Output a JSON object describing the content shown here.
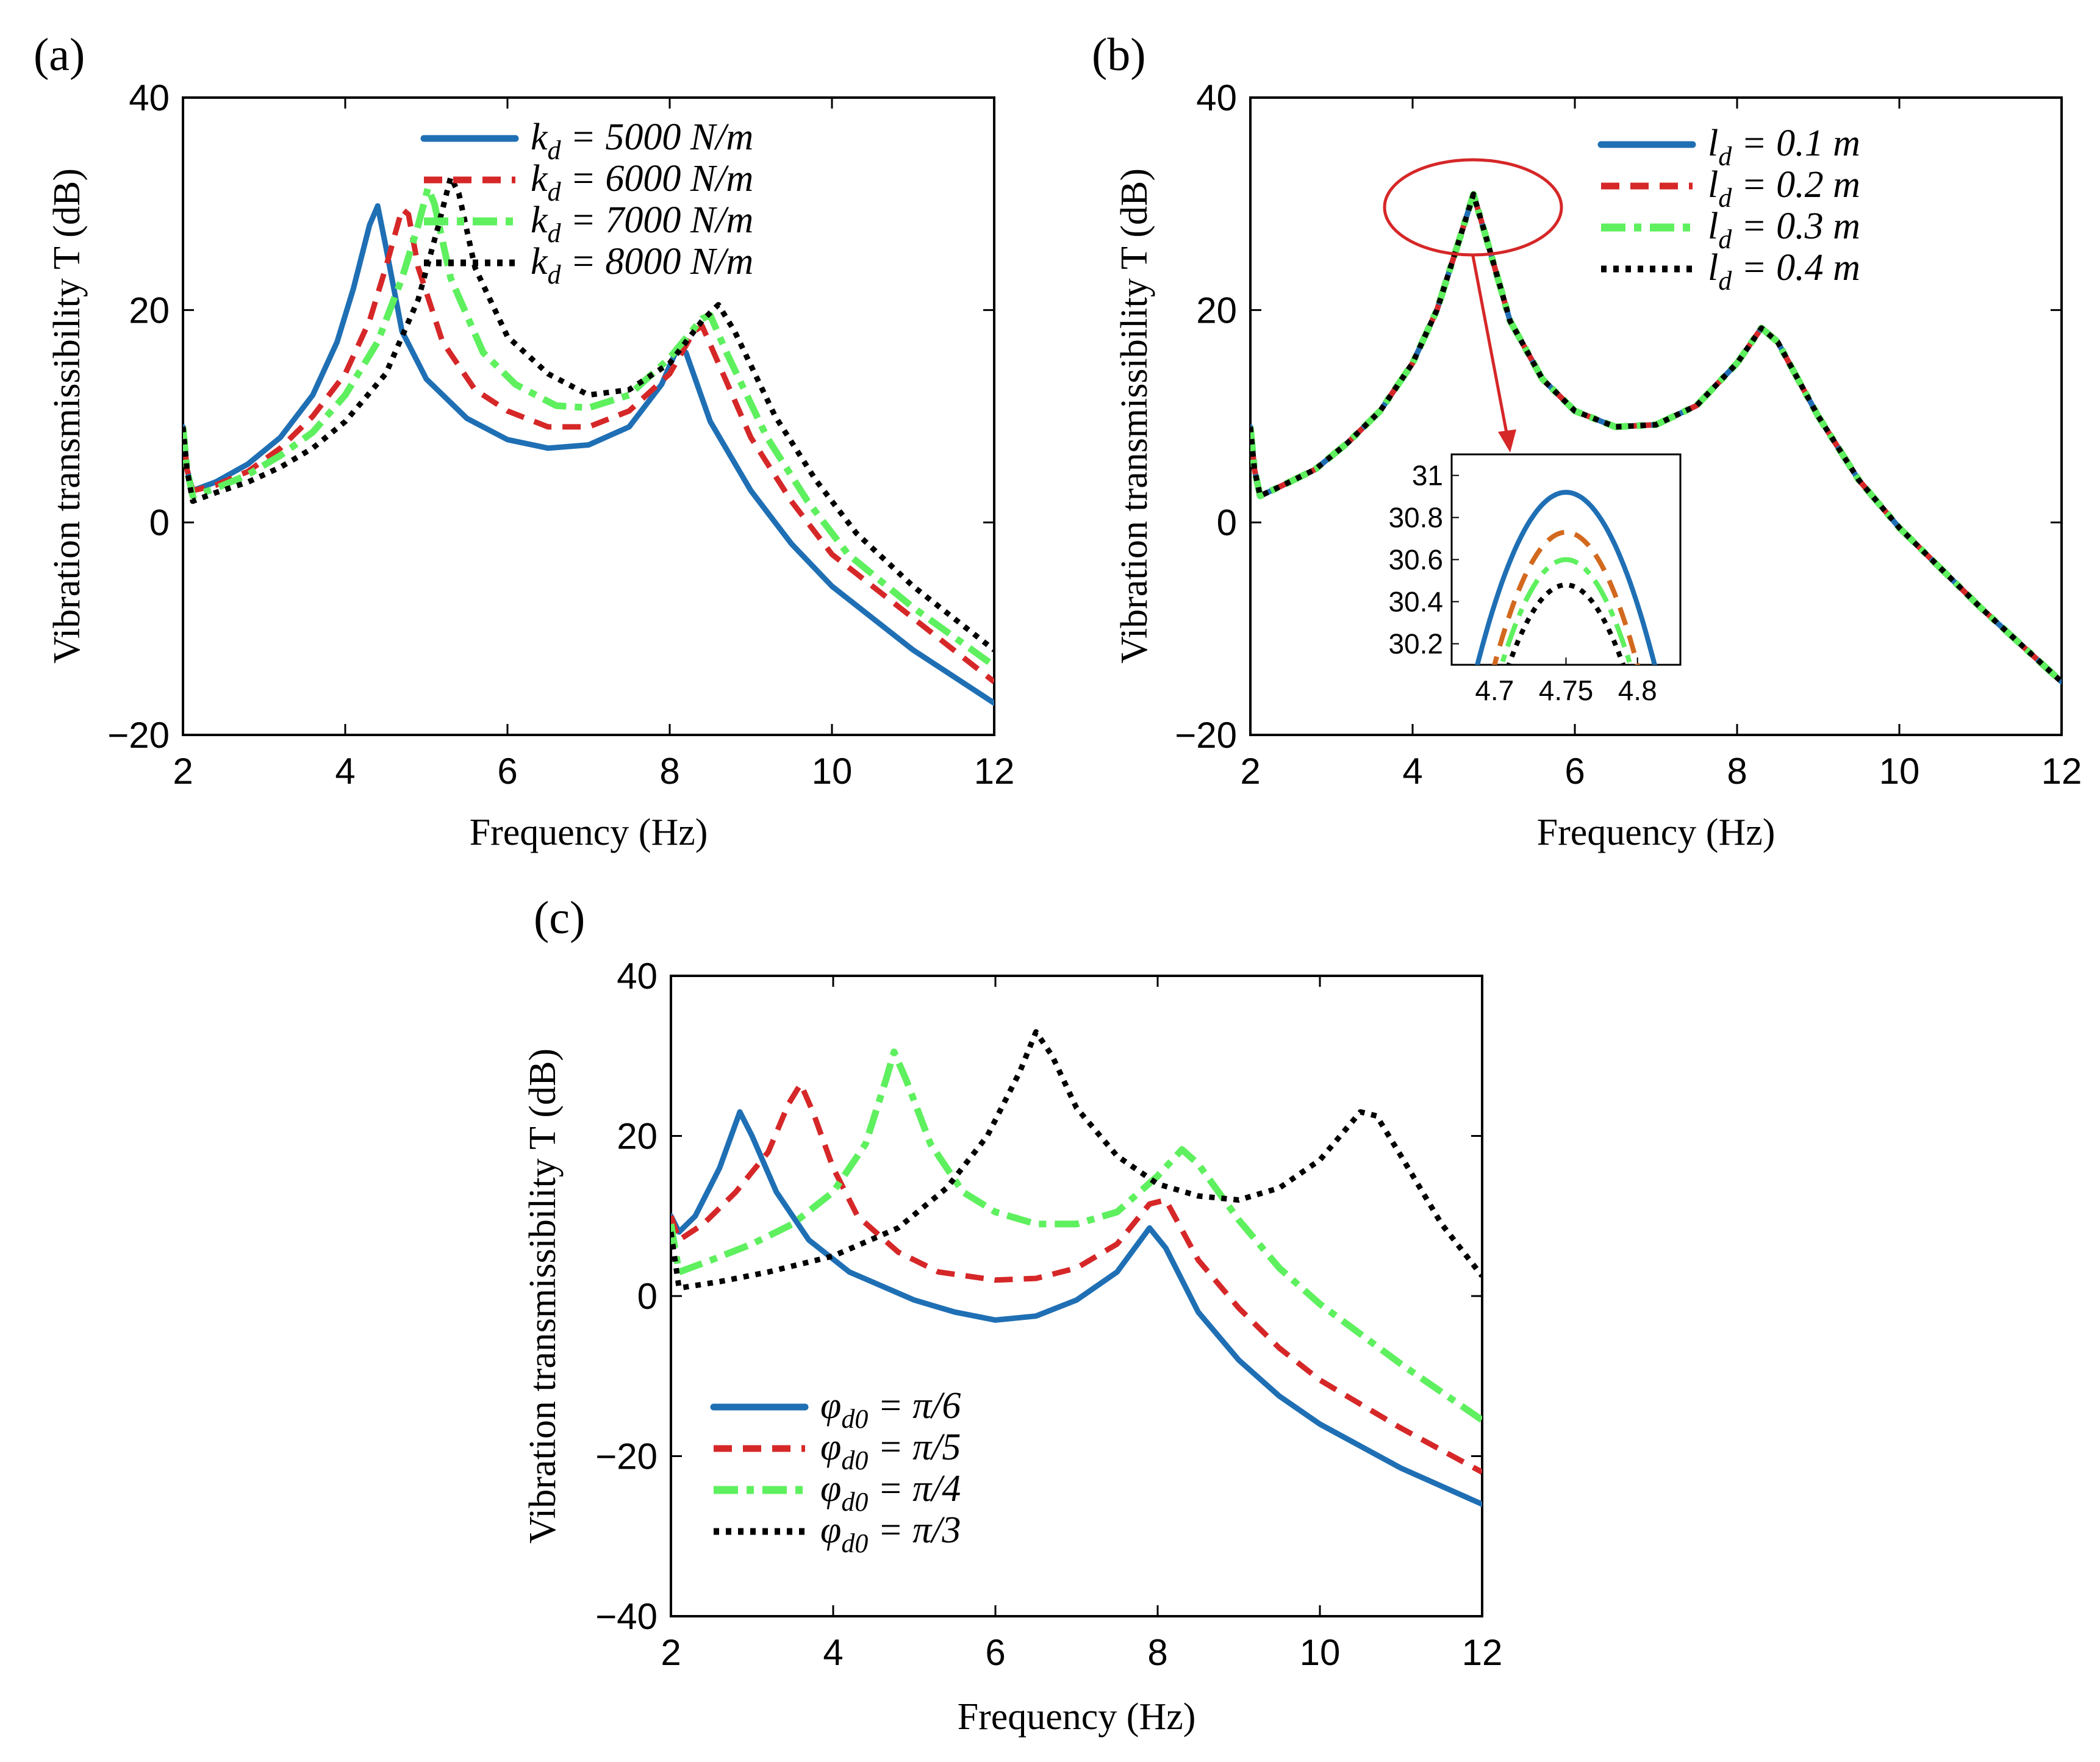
{
  "colors": {
    "blue": "#1f6fb4",
    "red": "#d62728",
    "green": "#5ef05e",
    "black": "#000000",
    "orange": "#d2691e",
    "annotation": "#d62728"
  },
  "chart_data": [
    {
      "panel": "(a)",
      "type": "line",
      "xlabel": "Frequency (Hz)",
      "ylabel": "Vibration transmissibility T (dB)",
      "xlim": [
        2,
        12
      ],
      "ylim": [
        -20,
        40
      ],
      "xticks": [
        "2",
        "4",
        "6",
        "8",
        "10",
        "12"
      ],
      "yticks": [
        "40",
        "20",
        "0",
        "−20"
      ],
      "legend_position": "top-right",
      "series": [
        {
          "name": "k_d = 5000 N/m",
          "label": "k",
          "sub": "d",
          "rest": " = 5000 N/m",
          "style": "solid",
          "color": "blue",
          "points": [
            [
              2,
              9
            ],
            [
              2.05,
              5
            ],
            [
              2.12,
              3
            ],
            [
              2.4,
              3.8
            ],
            [
              2.8,
              5.5
            ],
            [
              3.2,
              8
            ],
            [
              3.6,
              12
            ],
            [
              3.9,
              17
            ],
            [
              4.1,
              22
            ],
            [
              4.3,
              28
            ],
            [
              4.4,
              29.8
            ],
            [
              4.5,
              26
            ],
            [
              4.7,
              18
            ],
            [
              5,
              13.5
            ],
            [
              5.5,
              9.8
            ],
            [
              6,
              7.8
            ],
            [
              6.5,
              7
            ],
            [
              7,
              7.3
            ],
            [
              7.5,
              9
            ],
            [
              7.9,
              13
            ],
            [
              8.1,
              16.5
            ],
            [
              8.2,
              16
            ],
            [
              8.5,
              9.5
            ],
            [
              9,
              3
            ],
            [
              9.5,
              -2
            ],
            [
              10,
              -6
            ],
            [
              11,
              -12
            ],
            [
              12,
              -17
            ]
          ]
        },
        {
          "name": "k_d = 6000 N/m",
          "label": "k",
          "sub": "d",
          "rest": " = 6000 N/m",
          "style": "dashed",
          "color": "red",
          "points": [
            [
              2,
              9
            ],
            [
              2.05,
              5
            ],
            [
              2.12,
              3
            ],
            [
              2.4,
              3.5
            ],
            [
              2.8,
              4.8
            ],
            [
              3.2,
              7
            ],
            [
              3.6,
              10
            ],
            [
              4,
              14
            ],
            [
              4.3,
              19
            ],
            [
              4.5,
              24
            ],
            [
              4.7,
              29.5
            ],
            [
              4.78,
              29
            ],
            [
              4.9,
              24
            ],
            [
              5.2,
              17
            ],
            [
              5.6,
              12.5
            ],
            [
              6,
              10.5
            ],
            [
              6.5,
              9
            ],
            [
              7,
              9
            ],
            [
              7.5,
              10.5
            ],
            [
              8,
              14
            ],
            [
              8.3,
              18
            ],
            [
              8.4,
              18.5
            ],
            [
              8.6,
              15
            ],
            [
              9,
              8
            ],
            [
              9.5,
              2
            ],
            [
              10,
              -3
            ],
            [
              11,
              -9
            ],
            [
              12,
              -15
            ]
          ]
        },
        {
          "name": "k_d = 7000 N/m",
          "label": "k",
          "sub": "d",
          "rest": " = 7000 N/m",
          "style": "dashdot",
          "color": "green",
          "points": [
            [
              2,
              9
            ],
            [
              2.05,
              5
            ],
            [
              2.12,
              2.5
            ],
            [
              2.4,
              3.2
            ],
            [
              2.8,
              4.5
            ],
            [
              3.2,
              6.3
            ],
            [
              3.6,
              8.5
            ],
            [
              4,
              12
            ],
            [
              4.4,
              17
            ],
            [
              4.7,
              23
            ],
            [
              4.9,
              28
            ],
            [
              5.02,
              31.5
            ],
            [
              5.1,
              30
            ],
            [
              5.3,
              23
            ],
            [
              5.7,
              16
            ],
            [
              6.1,
              13
            ],
            [
              6.6,
              11
            ],
            [
              7,
              10.8
            ],
            [
              7.5,
              12
            ],
            [
              8,
              15.5
            ],
            [
              8.4,
              19.2
            ],
            [
              8.5,
              19.5
            ],
            [
              8.7,
              16
            ],
            [
              9.2,
              8
            ],
            [
              9.7,
              2
            ],
            [
              10.2,
              -3
            ],
            [
              11,
              -8
            ],
            [
              12,
              -13.5
            ]
          ]
        },
        {
          "name": "k_d = 8000 N/m",
          "label": "k",
          "sub": "d",
          "rest": " = 8000 N/m",
          "style": "dotted",
          "color": "black",
          "points": [
            [
              2,
              9
            ],
            [
              2.05,
              5
            ],
            [
              2.12,
              2
            ],
            [
              2.4,
              2.8
            ],
            [
              2.8,
              3.8
            ],
            [
              3.2,
              5.2
            ],
            [
              3.6,
              7
            ],
            [
              4,
              9.5
            ],
            [
              4.5,
              14
            ],
            [
              4.9,
              21
            ],
            [
              5.15,
              28
            ],
            [
              5.3,
              32.5
            ],
            [
              5.4,
              31
            ],
            [
              5.6,
              24
            ],
            [
              6,
              17.5
            ],
            [
              6.5,
              14
            ],
            [
              7,
              12
            ],
            [
              7.5,
              12.5
            ],
            [
              8,
              15
            ],
            [
              8.4,
              19
            ],
            [
              8.6,
              20.5
            ],
            [
              8.8,
              18
            ],
            [
              9.3,
              10
            ],
            [
              9.8,
              4
            ],
            [
              10.3,
              -1
            ],
            [
              11,
              -6
            ],
            [
              12,
              -12
            ]
          ]
        }
      ]
    },
    {
      "panel": "(b)",
      "type": "line",
      "xlabel": "Frequency (Hz)",
      "ylabel": "Vibration transmissibility T (dB)",
      "xlim": [
        2,
        12
      ],
      "ylim": [
        -20,
        40
      ],
      "xticks": [
        "2",
        "4",
        "6",
        "8",
        "10",
        "12"
      ],
      "yticks": [
        "40",
        "20",
        "0",
        "−20"
      ],
      "legend_position": "top-right",
      "series": [
        {
          "name": "l_d = 0.1 m",
          "label": "l",
          "sub": "d",
          "rest": " = 0.1 m",
          "style": "solid",
          "color": "blue"
        },
        {
          "name": "l_d = 0.2 m",
          "label": "l",
          "sub": "d",
          "rest": " = 0.2 m",
          "style": "dashed",
          "color": "red"
        },
        {
          "name": "l_d = 0.3 m",
          "label": "l",
          "sub": "d",
          "rest": " = 0.3 m",
          "style": "dashdot",
          "color": "green"
        },
        {
          "name": "l_d = 0.4 m",
          "label": "l",
          "sub": "d",
          "rest": " = 0.4 m",
          "style": "dotted",
          "color": "black"
        }
      ],
      "shared_points": [
        [
          2,
          9
        ],
        [
          2.05,
          5
        ],
        [
          2.12,
          2.5
        ],
        [
          2.4,
          3.5
        ],
        [
          2.8,
          5
        ],
        [
          3.2,
          7.5
        ],
        [
          3.6,
          10.5
        ],
        [
          4,
          15
        ],
        [
          4.3,
          20
        ],
        [
          4.55,
          26
        ],
        [
          4.75,
          30.9
        ],
        [
          4.9,
          27
        ],
        [
          5.2,
          19
        ],
        [
          5.6,
          13.5
        ],
        [
          6,
          10.5
        ],
        [
          6.5,
          9
        ],
        [
          7,
          9.2
        ],
        [
          7.5,
          11
        ],
        [
          8,
          15
        ],
        [
          8.3,
          18.3
        ],
        [
          8.5,
          17
        ],
        [
          9,
          10
        ],
        [
          9.5,
          4
        ],
        [
          10,
          -0.5
        ],
        [
          11,
          -8
        ],
        [
          12,
          -15
        ]
      ],
      "inset": {
        "xlim": [
          4.67,
          4.83
        ],
        "ylim": [
          30.1,
          31.1
        ],
        "xticks": [
          "4.7",
          "4.75",
          "4.8"
        ],
        "yticks": [
          "31",
          "30.8",
          "30.6",
          "30.4",
          "30.2"
        ],
        "peaks": [
          {
            "color": "blue",
            "peak": 30.92,
            "halfwidth": 0.062
          },
          {
            "color": "orange",
            "peak": 30.73,
            "halfwidth": 0.05
          },
          {
            "color": "green",
            "peak": 30.6,
            "halfwidth": 0.045
          },
          {
            "color": "black",
            "peak": 30.48,
            "halfwidth": 0.04
          }
        ]
      }
    },
    {
      "panel": "(c)",
      "type": "line",
      "xlabel": "Frequency (Hz)",
      "ylabel": "Vibration transmissibility T (dB)",
      "xlim": [
        2,
        12
      ],
      "ylim": [
        -40,
        40
      ],
      "xticks": [
        "2",
        "4",
        "6",
        "8",
        "10",
        "12"
      ],
      "yticks": [
        "40",
        "20",
        "0",
        "−20",
        "−40"
      ],
      "legend_position": "bottom-left",
      "series": [
        {
          "name": "φ_d0 = π/6",
          "label": "φ",
          "sub": "d0",
          "rest": " = π/6",
          "style": "solid",
          "color": "blue",
          "points": [
            [
              2,
              10
            ],
            [
              2.1,
              8
            ],
            [
              2.3,
              10
            ],
            [
              2.6,
              16
            ],
            [
              2.85,
              23
            ],
            [
              3,
              20
            ],
            [
              3.3,
              13
            ],
            [
              3.7,
              7
            ],
            [
              4.2,
              3
            ],
            [
              5,
              -0.5
            ],
            [
              5.5,
              -2
            ],
            [
              6,
              -3
            ],
            [
              6.5,
              -2.5
            ],
            [
              7,
              -0.5
            ],
            [
              7.5,
              3
            ],
            [
              7.9,
              8.5
            ],
            [
              8.1,
              6
            ],
            [
              8.5,
              -2
            ],
            [
              9,
              -8
            ],
            [
              9.5,
              -12.5
            ],
            [
              10,
              -16
            ],
            [
              11,
              -21.5
            ],
            [
              12,
              -26
            ]
          ]
        },
        {
          "name": "φ_d0 = π/5",
          "label": "φ",
          "sub": "d0",
          "rest": " = π/5",
          "style": "dashed",
          "color": "red",
          "points": [
            [
              2,
              10
            ],
            [
              2.1,
              7
            ],
            [
              2.4,
              9
            ],
            [
              2.8,
              13
            ],
            [
              3.2,
              18
            ],
            [
              3.45,
              24
            ],
            [
              3.6,
              26.5
            ],
            [
              3.75,
              23
            ],
            [
              4,
              16
            ],
            [
              4.3,
              10
            ],
            [
              4.8,
              5.5
            ],
            [
              5.3,
              3
            ],
            [
              6,
              2
            ],
            [
              6.5,
              2.2
            ],
            [
              7,
              3.5
            ],
            [
              7.5,
              6.5
            ],
            [
              7.9,
              11.5
            ],
            [
              8.1,
              12
            ],
            [
              8.5,
              4.5
            ],
            [
              9,
              -1.5
            ],
            [
              9.5,
              -6.5
            ],
            [
              10,
              -10.5
            ],
            [
              11,
              -16.5
            ],
            [
              12,
              -22
            ]
          ]
        },
        {
          "name": "φ_d0 = π/4",
          "label": "φ",
          "sub": "d0",
          "rest": " = π/4",
          "style": "dashdot",
          "color": "green",
          "points": [
            [
              2,
              9
            ],
            [
              2.1,
              3
            ],
            [
              2.5,
              4.5
            ],
            [
              3,
              6.5
            ],
            [
              3.5,
              9
            ],
            [
              4,
              13
            ],
            [
              4.4,
              19
            ],
            [
              4.65,
              27
            ],
            [
              4.75,
              30.5
            ],
            [
              4.9,
              27
            ],
            [
              5.2,
              19
            ],
            [
              5.6,
              13
            ],
            [
              6,
              10.5
            ],
            [
              6.5,
              9
            ],
            [
              7,
              9
            ],
            [
              7.5,
              10.5
            ],
            [
              8,
              15
            ],
            [
              8.3,
              18.3
            ],
            [
              8.5,
              16.5
            ],
            [
              9,
              9.5
            ],
            [
              9.5,
              3.5
            ],
            [
              10,
              -1
            ],
            [
              11,
              -8.5
            ],
            [
              12,
              -15.5
            ]
          ]
        },
        {
          "name": "φ_d0 = π/3",
          "label": "φ",
          "sub": "d0",
          "rest": " = π/3",
          "style": "dotted",
          "color": "black",
          "points": [
            [
              2,
              8
            ],
            [
              2.1,
              1
            ],
            [
              2.6,
              1.8
            ],
            [
              3.2,
              3
            ],
            [
              4,
              5
            ],
            [
              4.8,
              8.5
            ],
            [
              5.4,
              13.5
            ],
            [
              5.9,
              20
            ],
            [
              6.3,
              28
            ],
            [
              6.5,
              33
            ],
            [
              6.7,
              30
            ],
            [
              7,
              23.5
            ],
            [
              7.5,
              17.5
            ],
            [
              8,
              14
            ],
            [
              8.5,
              12.5
            ],
            [
              9,
              12
            ],
            [
              9.5,
              13.5
            ],
            [
              10,
              17
            ],
            [
              10.5,
              23
            ],
            [
              10.7,
              22.5
            ],
            [
              11,
              17.5
            ],
            [
              11.5,
              9
            ],
            [
              12,
              2.5
            ]
          ]
        }
      ]
    }
  ]
}
